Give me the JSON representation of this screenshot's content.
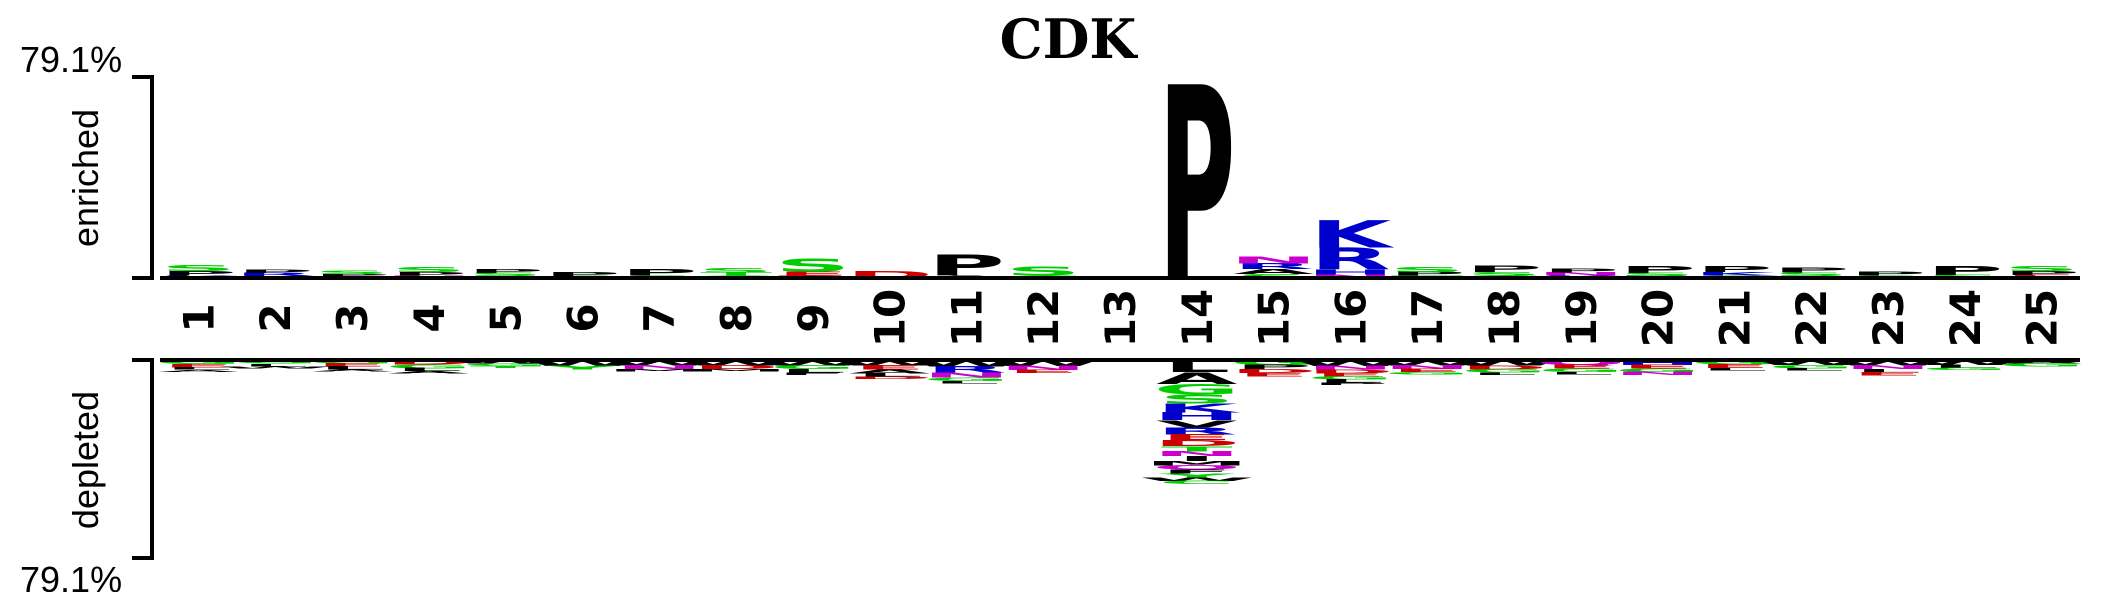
{
  "chart_data": {
    "type": "sequence-logo",
    "title": "CDK",
    "enriched_label": "enriched",
    "depleted_label": "depleted",
    "top_scale_label": "79.1%",
    "bottom_scale_label": "79.1%",
    "scale_max": 79.1,
    "colors": {
      "P": "#000000",
      "S": "#00cc00",
      "T": "#00cc00",
      "G": "#00cc00",
      "A": "#000000",
      "K": "#0000cc",
      "R": "#0000cc",
      "H": "#0000cc",
      "D": "#cc0000",
      "E": "#cc0000",
      "N": "#cc00cc",
      "Q": "#cc00cc",
      "C": "#00cc00",
      "V": "#000000",
      "L": "#000000",
      "I": "#000000",
      "M": "#000000",
      "F": "#000000",
      "W": "#000000",
      "Y": "#00cc00"
    },
    "positions": [
      {
        "label": "1",
        "enriched": [
          {
            "aa": "S",
            "value": 2.4
          },
          {
            "aa": "P",
            "value": 1.8
          },
          {
            "aa": "K",
            "value": 1.1
          }
        ],
        "depleted": [
          {
            "aa": "G",
            "value": 1.6
          },
          {
            "aa": "E",
            "value": 1.4
          },
          {
            "aa": "L",
            "value": 1.0
          },
          {
            "aa": "A",
            "value": 0.9
          }
        ]
      },
      {
        "label": "2",
        "enriched": [
          {
            "aa": "P",
            "value": 1.4
          },
          {
            "aa": "R",
            "value": 1.2
          },
          {
            "aa": "S",
            "value": 0.8
          }
        ],
        "depleted": [
          {
            "aa": "G",
            "value": 1.5
          },
          {
            "aa": "L",
            "value": 1.1
          },
          {
            "aa": "W",
            "value": 0.8
          }
        ]
      },
      {
        "label": "3",
        "enriched": [
          {
            "aa": "S",
            "value": 1.3
          },
          {
            "aa": "P",
            "value": 1.0
          },
          {
            "aa": "K",
            "value": 0.7
          }
        ],
        "depleted": [
          {
            "aa": "G",
            "value": 1.4
          },
          {
            "aa": "E",
            "value": 1.3
          },
          {
            "aa": "L",
            "value": 1.3
          },
          {
            "aa": "A",
            "value": 0.8
          }
        ]
      },
      {
        "label": "4",
        "enriched": [
          {
            "aa": "S",
            "value": 2.2
          },
          {
            "aa": "P",
            "value": 1.4
          },
          {
            "aa": "N",
            "value": 1.0
          }
        ],
        "depleted": [
          {
            "aa": "D",
            "value": 1.9
          },
          {
            "aa": "G",
            "value": 1.5
          },
          {
            "aa": "L",
            "value": 1.2
          },
          {
            "aa": "A",
            "value": 1.0
          }
        ]
      },
      {
        "label": "5",
        "enriched": [
          {
            "aa": "P",
            "value": 1.5
          },
          {
            "aa": "S",
            "value": 1.2
          },
          {
            "aa": "T",
            "value": 0.8
          }
        ],
        "depleted": [
          {
            "aa": "W",
            "value": 1.4
          },
          {
            "aa": "G",
            "value": 1.0
          },
          {
            "aa": "T",
            "value": 0.9
          }
        ]
      },
      {
        "label": "6",
        "enriched": [
          {
            "aa": "P",
            "value": 1.6
          },
          {
            "aa": "S",
            "value": 0.9
          }
        ],
        "depleted": [
          {
            "aa": "W",
            "value": 2.4
          },
          {
            "aa": "Y",
            "value": 1.5
          }
        ]
      },
      {
        "label": "7",
        "enriched": [
          {
            "aa": "P",
            "value": 2.5
          },
          {
            "aa": "S",
            "value": 1.0
          }
        ],
        "depleted": [
          {
            "aa": "W",
            "value": 2.2
          },
          {
            "aa": "N",
            "value": 1.5
          },
          {
            "aa": "M",
            "value": 1.1
          }
        ]
      },
      {
        "label": "8",
        "enriched": [
          {
            "aa": "S",
            "value": 1.8
          },
          {
            "aa": "T",
            "value": 1.2
          },
          {
            "aa": "G",
            "value": 1.0
          }
        ],
        "depleted": [
          {
            "aa": "W",
            "value": 2.2
          },
          {
            "aa": "D",
            "value": 1.5
          },
          {
            "aa": "M",
            "value": 1.1
          }
        ]
      },
      {
        "label": "9",
        "enriched": [
          {
            "aa": "S",
            "value": 5.2
          },
          {
            "aa": "E",
            "value": 1.6
          },
          {
            "aa": "D",
            "value": 1.0
          }
        ],
        "depleted": [
          {
            "aa": "W",
            "value": 2.2
          },
          {
            "aa": "G",
            "value": 1.6
          },
          {
            "aa": "L",
            "value": 1.4
          },
          {
            "aa": "F",
            "value": 1.0
          }
        ]
      },
      {
        "label": "10",
        "enriched": [
          {
            "aa": "D",
            "value": 3.0
          }
        ],
        "depleted": [
          {
            "aa": "W",
            "value": 2.2
          },
          {
            "aa": "E",
            "value": 1.8
          },
          {
            "aa": "A",
            "value": 1.6
          },
          {
            "aa": "L",
            "value": 1.2
          },
          {
            "aa": "D",
            "value": 1.0
          }
        ]
      },
      {
        "label": "11",
        "enriched": [
          {
            "aa": "P",
            "value": 8.4
          },
          {
            "aa": "A",
            "value": 1.0
          }
        ],
        "depleted": [
          {
            "aa": "W",
            "value": 2.6
          },
          {
            "aa": "R",
            "value": 2.6
          },
          {
            "aa": "N",
            "value": 2.0
          },
          {
            "aa": "G",
            "value": 1.4
          },
          {
            "aa": "L",
            "value": 1.0
          }
        ]
      },
      {
        "label": "12",
        "enriched": [
          {
            "aa": "S",
            "value": 3.8
          },
          {
            "aa": "G",
            "value": 1.0
          }
        ],
        "depleted": [
          {
            "aa": "W",
            "value": 2.4
          },
          {
            "aa": "N",
            "value": 1.8
          },
          {
            "aa": "E",
            "value": 1.2
          }
        ]
      },
      {
        "label": "13",
        "enriched": [],
        "depleted": []
      },
      {
        "label": "14",
        "enriched": [
          {
            "aa": "P",
            "value": 79.1
          }
        ],
        "depleted": [
          {
            "aa": "L",
            "value": 5.0
          },
          {
            "aa": "A",
            "value": 4.8
          },
          {
            "aa": "G",
            "value": 4.4
          },
          {
            "aa": "S",
            "value": 3.8
          },
          {
            "aa": "K",
            "value": 3.6
          },
          {
            "aa": "H",
            "value": 3.2
          },
          {
            "aa": "V",
            "value": 3.0
          },
          {
            "aa": "R",
            "value": 2.8
          },
          {
            "aa": "E",
            "value": 2.4
          },
          {
            "aa": "D",
            "value": 2.4
          },
          {
            "aa": "T",
            "value": 2.2
          },
          {
            "aa": "N",
            "value": 2.0
          },
          {
            "aa": "I",
            "value": 2.0
          },
          {
            "aa": "M",
            "value": 1.8
          },
          {
            "aa": "Q",
            "value": 1.8
          },
          {
            "aa": "F",
            "value": 1.6
          },
          {
            "aa": "Y",
            "value": 1.6
          },
          {
            "aa": "W",
            "value": 1.4
          },
          {
            "aa": "C",
            "value": 1.2
          }
        ]
      },
      {
        "label": "15",
        "enriched": [
          {
            "aa": "N",
            "value": 3.0
          },
          {
            "aa": "R",
            "value": 2.4
          },
          {
            "aa": "A",
            "value": 2.0
          },
          {
            "aa": "S",
            "value": 1.6
          }
        ],
        "depleted": [
          {
            "aa": "G",
            "value": 2.0
          },
          {
            "aa": "P",
            "value": 1.8
          },
          {
            "aa": "D",
            "value": 1.6
          },
          {
            "aa": "E",
            "value": 1.4
          }
        ]
      },
      {
        "label": "16",
        "enriched": [
          {
            "aa": "K",
            "value": 11.0
          },
          {
            "aa": "R",
            "value": 9.0
          },
          {
            "aa": "H",
            "value": 2.0
          },
          {
            "aa": "N",
            "value": 1.4
          }
        ],
        "depleted": [
          {
            "aa": "W",
            "value": 2.4
          },
          {
            "aa": "N",
            "value": 1.6
          },
          {
            "aa": "D",
            "value": 1.5
          },
          {
            "aa": "E",
            "value": 1.4
          },
          {
            "aa": "G",
            "value": 1.2
          },
          {
            "aa": "L",
            "value": 1.2
          },
          {
            "aa": "P",
            "value": 1.0
          }
        ]
      },
      {
        "label": "17",
        "enriched": [
          {
            "aa": "S",
            "value": 2.2
          },
          {
            "aa": "P",
            "value": 1.5
          },
          {
            "aa": "T",
            "value": 1.0
          }
        ],
        "depleted": [
          {
            "aa": "W",
            "value": 2.2
          },
          {
            "aa": "N",
            "value": 1.6
          },
          {
            "aa": "E",
            "value": 1.2
          },
          {
            "aa": "G",
            "value": 1.0
          }
        ]
      },
      {
        "label": "18",
        "enriched": [
          {
            "aa": "P",
            "value": 2.6
          },
          {
            "aa": "S",
            "value": 1.4
          },
          {
            "aa": "G",
            "value": 1.0
          }
        ],
        "depleted": [
          {
            "aa": "W",
            "value": 2.3
          },
          {
            "aa": "D",
            "value": 1.6
          },
          {
            "aa": "G",
            "value": 1.2
          },
          {
            "aa": "L",
            "value": 1.0
          }
        ]
      },
      {
        "label": "19",
        "enriched": [
          {
            "aa": "P",
            "value": 1.6
          },
          {
            "aa": "N",
            "value": 1.2
          },
          {
            "aa": "K",
            "value": 1.0
          }
        ],
        "depleted": [
          {
            "aa": "Q",
            "value": 2.0
          },
          {
            "aa": "E",
            "value": 1.6
          },
          {
            "aa": "G",
            "value": 1.4
          },
          {
            "aa": "L",
            "value": 1.0
          }
        ]
      },
      {
        "label": "20",
        "enriched": [
          {
            "aa": "P",
            "value": 3.0
          },
          {
            "aa": "S",
            "value": 1.2
          },
          {
            "aa": "R",
            "value": 0.9
          }
        ],
        "depleted": [
          {
            "aa": "H",
            "value": 2.0
          },
          {
            "aa": "E",
            "value": 1.6
          },
          {
            "aa": "G",
            "value": 1.4
          },
          {
            "aa": "N",
            "value": 1.2
          }
        ]
      },
      {
        "label": "21",
        "enriched": [
          {
            "aa": "P",
            "value": 2.4
          },
          {
            "aa": "K",
            "value": 1.4
          },
          {
            "aa": "S",
            "value": 1.0
          }
        ],
        "depleted": [
          {
            "aa": "G",
            "value": 1.8
          },
          {
            "aa": "E",
            "value": 1.5
          },
          {
            "aa": "L",
            "value": 1.0
          }
        ]
      },
      {
        "label": "22",
        "enriched": [
          {
            "aa": "P",
            "value": 2.0
          },
          {
            "aa": "S",
            "value": 1.4
          },
          {
            "aa": "K",
            "value": 0.8
          }
        ],
        "depleted": [
          {
            "aa": "W",
            "value": 2.0
          },
          {
            "aa": "G",
            "value": 1.4
          },
          {
            "aa": "L",
            "value": 1.0
          }
        ]
      },
      {
        "label": "23",
        "enriched": [
          {
            "aa": "P",
            "value": 1.6
          },
          {
            "aa": "S",
            "value": 1.0
          }
        ],
        "depleted": [
          {
            "aa": "W",
            "value": 2.2
          },
          {
            "aa": "N",
            "value": 1.6
          },
          {
            "aa": "L",
            "value": 1.4
          },
          {
            "aa": "E",
            "value": 1.2
          }
        ]
      },
      {
        "label": "24",
        "enriched": [
          {
            "aa": "P",
            "value": 3.6
          },
          {
            "aa": "S",
            "value": 1.2
          }
        ],
        "depleted": [
          {
            "aa": "W",
            "value": 2.0
          },
          {
            "aa": "L",
            "value": 1.2
          },
          {
            "aa": "G",
            "value": 1.0
          }
        ]
      },
      {
        "label": "25",
        "enriched": [
          {
            "aa": "S",
            "value": 2.2
          },
          {
            "aa": "P",
            "value": 1.6
          },
          {
            "aa": "E",
            "value": 1.2
          }
        ],
        "depleted": [
          {
            "aa": "A",
            "value": 1.4
          },
          {
            "aa": "G",
            "value": 1.2
          }
        ]
      }
    ]
  }
}
